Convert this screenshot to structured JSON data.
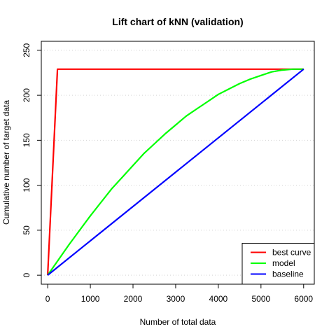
{
  "chart_data": {
    "type": "line",
    "title": "Lift chart of kNN (validation)",
    "xlabel": "Number of total data",
    "ylabel": "Cumulative number of target data",
    "xlim": [
      -150,
      6250
    ],
    "ylim": [
      -10,
      260
    ],
    "xticks": [
      0,
      1000,
      2000,
      3000,
      4000,
      5000,
      6000
    ],
    "yticks": [
      0,
      50,
      100,
      150,
      200,
      250
    ],
    "grid": "horizontal dotted",
    "legend_position": "bottom-right",
    "series": [
      {
        "name": "best curve",
        "color": "#ff0000",
        "x": [
          0,
          229,
          6000
        ],
        "y": [
          0,
          229,
          229
        ]
      },
      {
        "name": "model",
        "color": "#00ff00",
        "x": [
          0,
          250,
          500,
          750,
          1000,
          1250,
          1500,
          1750,
          2000,
          2250,
          2500,
          2750,
          3000,
          3250,
          3500,
          3750,
          4000,
          4250,
          4500,
          4750,
          5000,
          5250,
          5500,
          5750,
          6000
        ],
        "y": [
          0,
          17,
          34,
          50,
          66,
          81,
          96,
          109,
          122,
          135,
          146,
          157,
          167,
          177,
          185,
          193,
          201,
          207,
          213,
          218,
          222,
          226,
          228,
          229,
          229
        ]
      },
      {
        "name": "baseline",
        "color": "#0000ff",
        "x": [
          0,
          6000
        ],
        "y": [
          0,
          229
        ]
      }
    ]
  }
}
